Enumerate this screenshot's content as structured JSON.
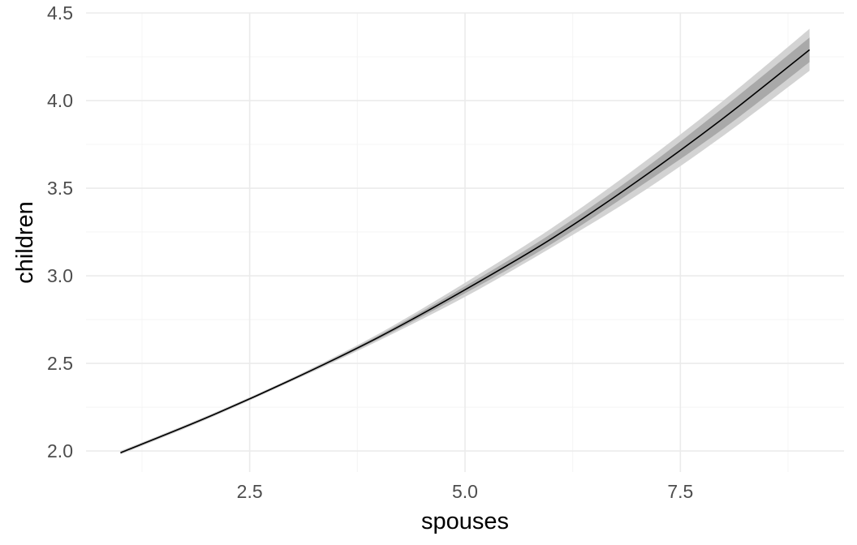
{
  "chart_data": {
    "type": "line",
    "title": "",
    "xlabel": "spouses",
    "ylabel": "children",
    "xlim": [
      0.6,
      9.4
    ],
    "ylim": [
      1.88,
      4.5
    ],
    "x_ticks": [
      2.5,
      5.0,
      7.5
    ],
    "x_tick_labels": [
      "2.5",
      "5.0",
      "7.5"
    ],
    "x_minor_ticks": [
      1.25,
      3.75,
      6.25,
      8.75
    ],
    "y_ticks": [
      2.0,
      2.5,
      3.0,
      3.5,
      4.0,
      4.5
    ],
    "y_tick_labels": [
      "2.0",
      "2.5",
      "3.0",
      "3.5",
      "4.0",
      "4.5"
    ],
    "y_minor_ticks": [
      2.25,
      2.75,
      3.25,
      3.75,
      4.25
    ],
    "grid": true,
    "series": [
      {
        "x": [
          1,
          2,
          3,
          4,
          5,
          6,
          7,
          8,
          9
        ],
        "values": [
          1.99,
          2.19,
          2.41,
          2.65,
          2.92,
          3.21,
          3.54,
          3.9,
          4.29
        ],
        "inner_band_lower": [
          1.985,
          2.185,
          2.405,
          2.64,
          2.9,
          3.18,
          3.5,
          3.84,
          4.22
        ],
        "inner_band_upper": [
          1.995,
          2.195,
          2.415,
          2.66,
          2.94,
          3.24,
          3.58,
          3.96,
          4.36
        ],
        "outer_band_lower": [
          1.98,
          2.18,
          2.4,
          2.63,
          2.88,
          3.16,
          3.46,
          3.8,
          4.17
        ],
        "outer_band_upper": [
          2.0,
          2.2,
          2.42,
          2.67,
          2.96,
          3.27,
          3.62,
          4.0,
          4.41
        ]
      }
    ],
    "colors": {
      "line": "#000000",
      "inner_band": "#a9a9a9",
      "outer_band": "#d3d3d3",
      "grid_major": "#ebebeb",
      "grid_minor": "#f4f4f4",
      "tick_text": "#4d4d4d",
      "axis_title": "#000000"
    }
  }
}
